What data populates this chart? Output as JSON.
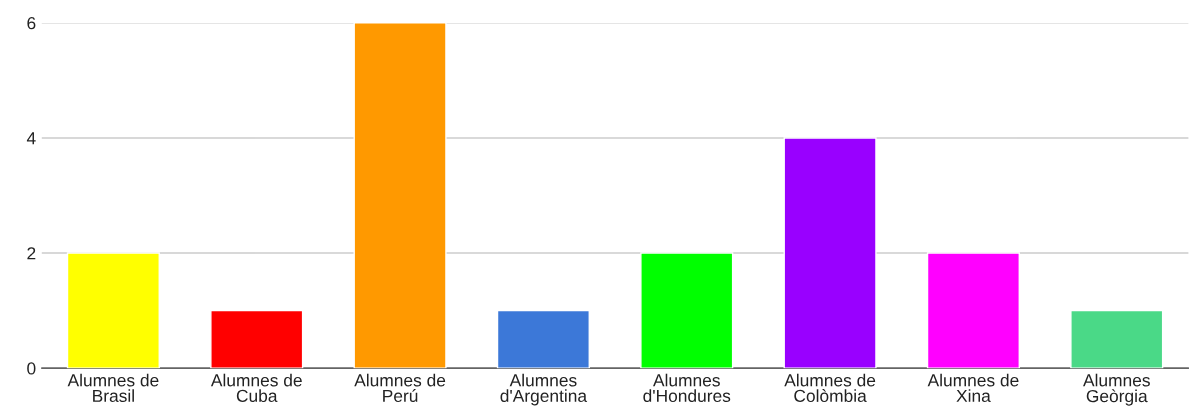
{
  "chart_data": {
    "type": "bar",
    "categories": [
      "Alumnes de\nBrasil",
      "Alumnes de\nCuba",
      "Alumnes de\nPerú",
      "Alumnes\nd'Argentina",
      "Alumnes\nd'Hondures",
      "Alumnes de\nColòmbia",
      "Alumnes de\nXina",
      "Alumnes\nGeòrgia"
    ],
    "values": [
      2,
      1,
      6,
      1,
      2,
      4,
      2,
      1
    ],
    "colors": [
      "#ffff00",
      "#ff0000",
      "#ff9900",
      "#3c78d8",
      "#00ff00",
      "#9900ff",
      "#ff00ff",
      "#4ad987"
    ],
    "ylim": [
      0,
      6
    ],
    "yticks": [
      0,
      2,
      4,
      6
    ],
    "grid": "y"
  }
}
